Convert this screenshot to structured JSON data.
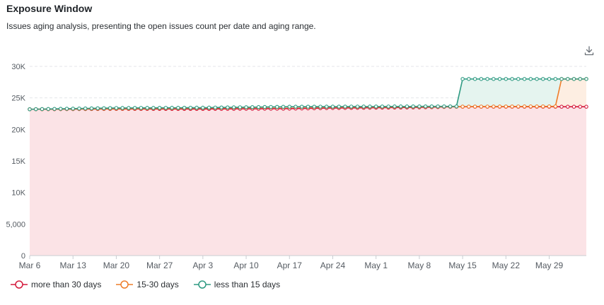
{
  "header": {
    "title": "Exposure Window",
    "subtitle": "Issues aging analysis, presenting the open issues count per date and aging range."
  },
  "icons": {
    "download": "download-icon"
  },
  "colors": {
    "more_than_30": "#d4193b",
    "d15_30": "#ee7d2a",
    "less_than_15": "#2e9a82",
    "fill_red": "#fbe3e6",
    "fill_orange": "#fdeee2",
    "fill_teal": "#e5f4ef",
    "grid": "#e4e6ea",
    "axis": "#c9ccd1",
    "tick_text": "#555b62"
  },
  "chart_data": {
    "type": "area",
    "stacked": false,
    "x_start": "2024-03-06",
    "x_end": "2024-06-04",
    "x_ticks": [
      {
        "date": "2024-03-06",
        "label": "Mar 6"
      },
      {
        "date": "2024-03-13",
        "label": "Mar 13"
      },
      {
        "date": "2024-03-20",
        "label": "Mar 20"
      },
      {
        "date": "2024-03-27",
        "label": "Mar 27"
      },
      {
        "date": "2024-04-03",
        "label": "Apr 3"
      },
      {
        "date": "2024-04-10",
        "label": "Apr 10"
      },
      {
        "date": "2024-04-17",
        "label": "Apr 17"
      },
      {
        "date": "2024-04-24",
        "label": "Apr 24"
      },
      {
        "date": "2024-05-01",
        "label": "May 1"
      },
      {
        "date": "2024-05-08",
        "label": "May 8"
      },
      {
        "date": "2024-05-15",
        "label": "May 15"
      },
      {
        "date": "2024-05-22",
        "label": "May 22"
      },
      {
        "date": "2024-05-29",
        "label": "May 29"
      }
    ],
    "y_ticks": [
      {
        "value": 0,
        "label": "0"
      },
      {
        "value": 5000,
        "label": "5,000"
      },
      {
        "value": 10000,
        "label": "10K"
      },
      {
        "value": 15000,
        "label": "15K"
      },
      {
        "value": 20000,
        "label": "20K"
      },
      {
        "value": 25000,
        "label": "25K"
      },
      {
        "value": 30000,
        "label": "30K"
      }
    ],
    "ylim": [
      0,
      30000
    ],
    "grid": true,
    "legend_position": "bottom-left",
    "series": [
      {
        "name": "more than 30 days",
        "key": "more_than_30",
        "points": [
          [
            "2024-03-06",
            23200
          ],
          [
            "2024-03-20",
            23250
          ],
          [
            "2024-04-03",
            23250
          ],
          [
            "2024-04-17",
            23300
          ],
          [
            "2024-04-24",
            23400
          ],
          [
            "2024-05-08",
            23500
          ],
          [
            "2024-05-14",
            23600
          ],
          [
            "2024-06-04",
            23600
          ]
        ]
      },
      {
        "name": "15-30 days",
        "key": "d15_30",
        "points": [
          [
            "2024-03-06",
            23200
          ],
          [
            "2024-03-20",
            23300
          ],
          [
            "2024-04-03",
            23400
          ],
          [
            "2024-04-17",
            23550
          ],
          [
            "2024-05-08",
            23600
          ],
          [
            "2024-05-29",
            23650
          ],
          [
            "2024-05-30",
            23650
          ],
          [
            "2024-05-31",
            28000
          ],
          [
            "2024-06-04",
            28000
          ]
        ]
      },
      {
        "name": "less than 15 days",
        "key": "less_than_15",
        "points": [
          [
            "2024-03-06",
            23200
          ],
          [
            "2024-03-20",
            23400
          ],
          [
            "2024-04-03",
            23450
          ],
          [
            "2024-04-17",
            23600
          ],
          [
            "2024-05-08",
            23650
          ],
          [
            "2024-05-14",
            23650
          ],
          [
            "2024-05-15",
            28000
          ],
          [
            "2024-06-04",
            28000
          ]
        ]
      }
    ]
  }
}
